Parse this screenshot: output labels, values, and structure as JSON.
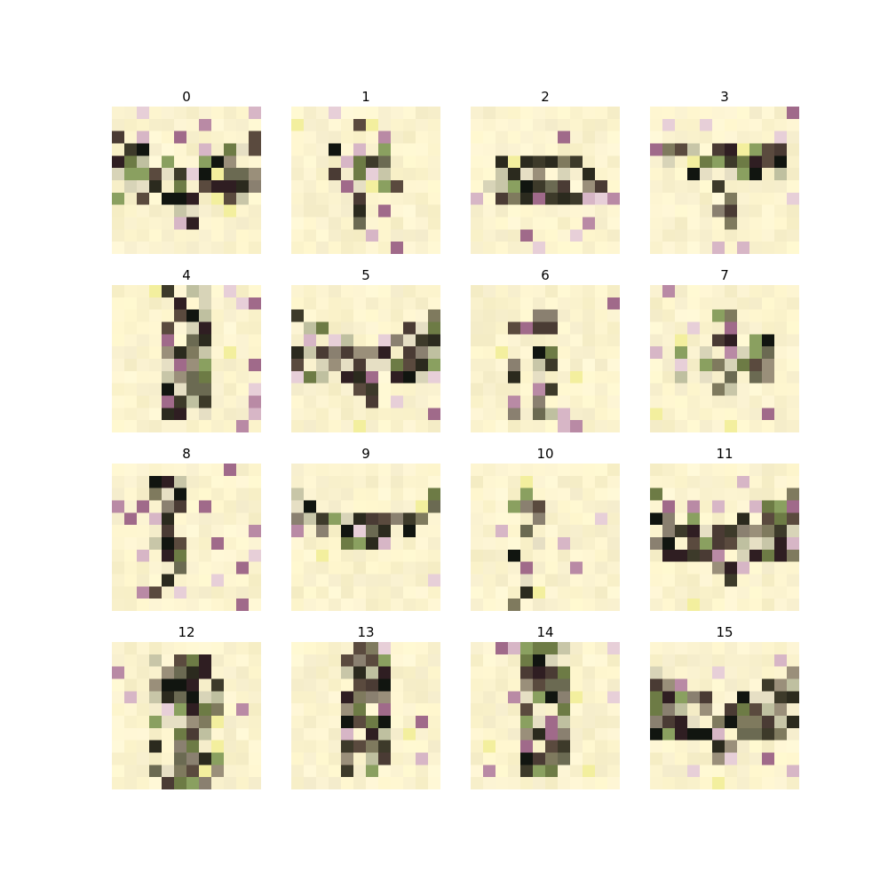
{
  "figure": {
    "background": "#ffffff",
    "grid": {
      "rows": 4,
      "cols": 4
    },
    "pixel_grid": 12,
    "base_color": "#fbf3cf",
    "panels": [
      {
        "title": "0",
        "motif": "butterfly-wide"
      },
      {
        "title": "1",
        "motif": "cross-vertical"
      },
      {
        "title": "2",
        "motif": "horizontal-band"
      },
      {
        "title": "3",
        "motif": "t-shape"
      },
      {
        "title": "4",
        "motif": "vertical-bar"
      },
      {
        "title": "5",
        "motif": "butterfly-wide"
      },
      {
        "title": "6",
        "motif": "thin-vertical"
      },
      {
        "title": "7",
        "motif": "cross-blob"
      },
      {
        "title": "8",
        "motif": "double-vertical"
      },
      {
        "title": "9",
        "motif": "v-band"
      },
      {
        "title": "10",
        "motif": "double-vertical"
      },
      {
        "title": "11",
        "motif": "butterfly-wide"
      },
      {
        "title": "12",
        "motif": "dense-vertical"
      },
      {
        "title": "13",
        "motif": "vertical-bar"
      },
      {
        "title": "14",
        "motif": "vertical-bar"
      },
      {
        "title": "15",
        "motif": "butterfly-wide"
      }
    ],
    "palette": {
      "dark": [
        "#111510",
        "#2b2a1e",
        "#3d3a2a",
        "#4a3b34",
        "#5a4a3e",
        "#2f1e22"
      ],
      "mid": [
        "#6b6a52",
        "#7f7a5e",
        "#8a8070",
        "#9a8f7a",
        "#6d7b45",
        "#8aa060"
      ],
      "light": [
        "#c8c6a8",
        "#d8d4b8",
        "#e6dfc4",
        "#bfc0a0"
      ],
      "accent": [
        "#b98aa5",
        "#d7b6c6",
        "#e7cfd8",
        "#a06a8a",
        "#f3ef9e"
      ]
    }
  }
}
